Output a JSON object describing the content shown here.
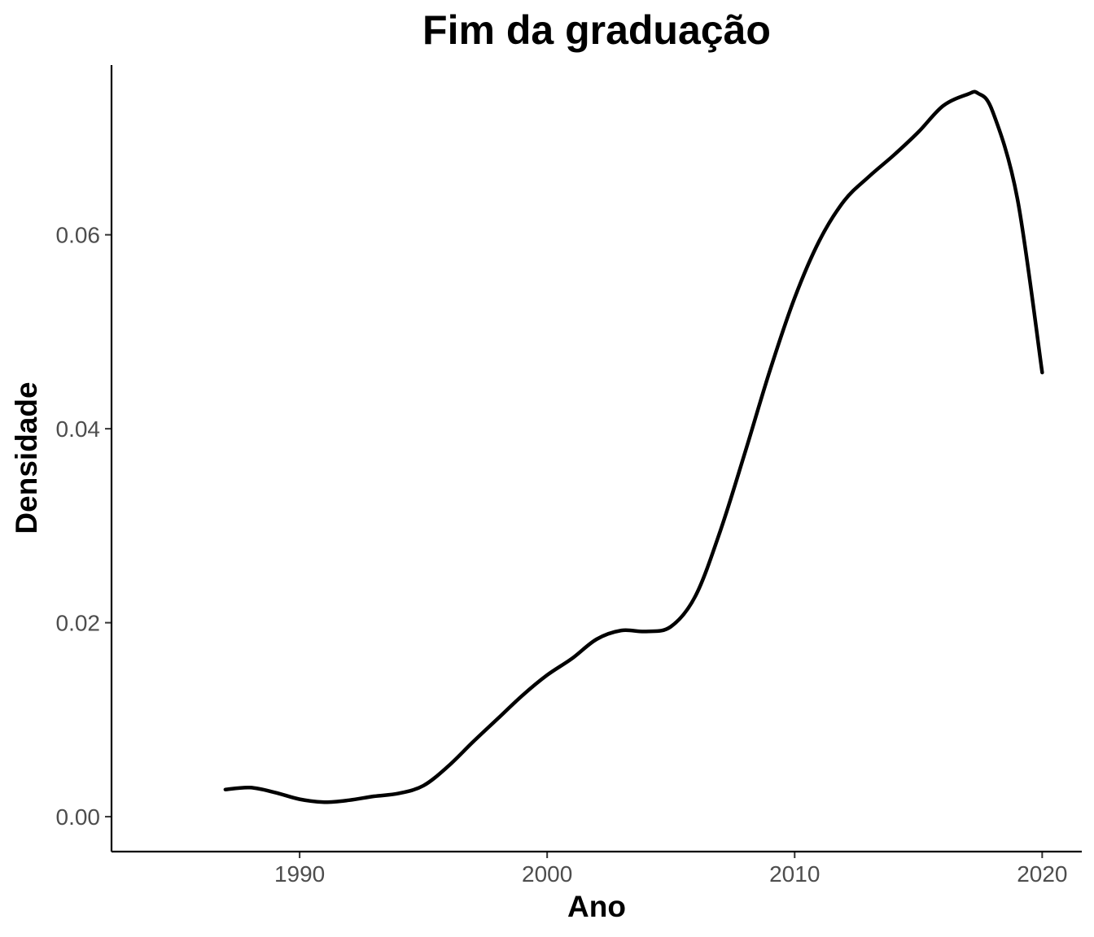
{
  "chart_data": {
    "type": "line",
    "title": "Fim da graduação",
    "xlabel": "Ano",
    "ylabel": "Densidade",
    "xlim": [
      1982.4,
      2021.6
    ],
    "ylim": [
      -0.0036,
      0.0775
    ],
    "grid": false,
    "legend": "none",
    "x_ticks": [
      1990,
      2000,
      2010,
      2020
    ],
    "x_tick_labels": [
      "1990",
      "2000",
      "2010",
      "2020"
    ],
    "y_ticks": [
      0.0,
      0.02,
      0.04,
      0.06
    ],
    "y_tick_labels": [
      "0.00",
      "0.02",
      "0.04",
      "0.06"
    ],
    "line_color": "#000000",
    "series": [
      {
        "x": [
          1987,
          1988,
          1989,
          1990,
          1991,
          1992,
          1993,
          1994,
          1995,
          1996,
          1997,
          1998,
          1999,
          2000,
          2001,
          2002,
          2003,
          2004,
          2005,
          2006,
          2007,
          2008,
          2009,
          2010,
          2011,
          2012,
          2013,
          2014,
          2015,
          2016,
          2017,
          2017.4,
          2018,
          2019,
          2020
        ],
        "y": [
          0.0028,
          0.003,
          0.0025,
          0.0018,
          0.0015,
          0.0017,
          0.0021,
          0.0024,
          0.0032,
          0.0052,
          0.0077,
          0.0101,
          0.0125,
          0.0146,
          0.0163,
          0.0183,
          0.0192,
          0.0191,
          0.0196,
          0.0228,
          0.0295,
          0.0376,
          0.046,
          0.0535,
          0.0594,
          0.0635,
          0.066,
          0.0682,
          0.0706,
          0.0733,
          0.0745,
          0.0746,
          0.0727,
          0.0637,
          0.0458
        ]
      }
    ]
  }
}
